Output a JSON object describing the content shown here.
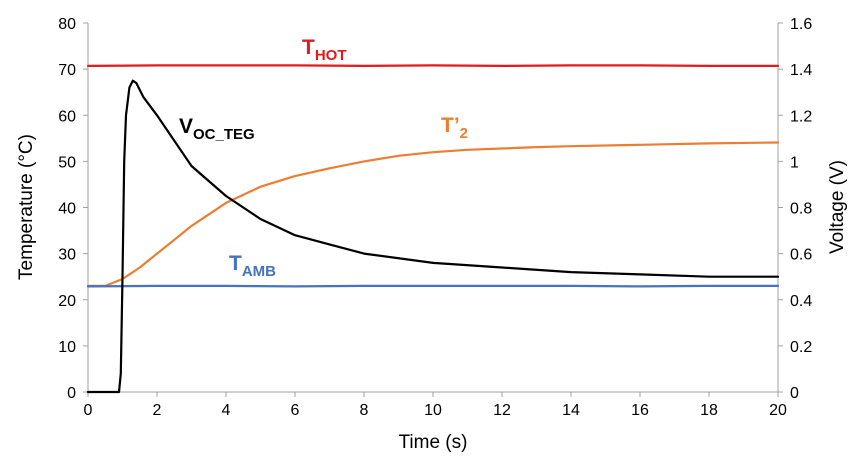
{
  "chart_data": {
    "type": "line",
    "title": "",
    "xlabel": "Time (s)",
    "ylabel_left": "Temperature (°C)",
    "ylabel_right": "Voltage (V)",
    "xlim": [
      0,
      20
    ],
    "ylim_left": [
      0,
      80
    ],
    "ylim_right": [
      0,
      1.6
    ],
    "x_ticks": [
      0,
      2,
      4,
      6,
      8,
      10,
      12,
      14,
      16,
      18,
      20
    ],
    "y_left_ticks": [
      0,
      10,
      20,
      30,
      40,
      50,
      60,
      70,
      80
    ],
    "y_right_ticks": [
      "0",
      "0.2",
      "0.4",
      "0.6",
      "0.8",
      "1",
      "1.2",
      "1.4",
      "1.6"
    ],
    "grid": false,
    "series": [
      {
        "name": "T_HOT",
        "label_main": "T",
        "label_sub": "HOT",
        "color": "#e31a1c",
        "axis": "left",
        "x": [
          0,
          2,
          4,
          6,
          8,
          10,
          12,
          14,
          16,
          18,
          20
        ],
        "y": [
          70.7,
          70.8,
          70.8,
          70.8,
          70.7,
          70.8,
          70.7,
          70.8,
          70.8,
          70.7,
          70.7
        ]
      },
      {
        "name": "T'_2",
        "label_main": "T’",
        "label_sub": "2",
        "color": "#ed7d31",
        "axis": "left",
        "x": [
          0,
          0.5,
          1,
          1.5,
          2,
          2.5,
          3,
          4,
          5,
          6,
          7,
          8,
          9,
          10,
          11,
          12,
          13,
          14,
          16,
          18,
          20
        ],
        "y": [
          23,
          23,
          24.5,
          27,
          30,
          33,
          36,
          41,
          44.5,
          46.8,
          48.5,
          50,
          51.2,
          52,
          52.5,
          52.8,
          53.1,
          53.3,
          53.6,
          53.9,
          54.1
        ]
      },
      {
        "name": "T_AMB",
        "label_main": "T",
        "label_sub": "AMB",
        "color": "#4472c4",
        "axis": "left",
        "x": [
          0,
          2,
          4,
          6,
          8,
          10,
          12,
          14,
          16,
          18,
          20
        ],
        "y": [
          22.9,
          23,
          23,
          22.9,
          23,
          23,
          23,
          23,
          22.9,
          23,
          23
        ]
      },
      {
        "name": "V_OC_TEG",
        "label_main": "V",
        "label_sub": "OC_TEG",
        "color": "#000000",
        "axis": "right",
        "x": [
          0,
          0.9,
          0.95,
          1.0,
          1.05,
          1.1,
          1.2,
          1.3,
          1.4,
          1.6,
          2,
          3,
          4,
          5,
          6,
          7,
          8,
          10,
          12,
          14,
          16,
          18,
          20
        ],
        "y": [
          0,
          0,
          0.08,
          0.5,
          1.0,
          1.2,
          1.32,
          1.35,
          1.34,
          1.28,
          1.2,
          0.98,
          0.85,
          0.75,
          0.68,
          0.64,
          0.6,
          0.56,
          0.54,
          0.52,
          0.51,
          0.5,
          0.5
        ]
      }
    ]
  }
}
